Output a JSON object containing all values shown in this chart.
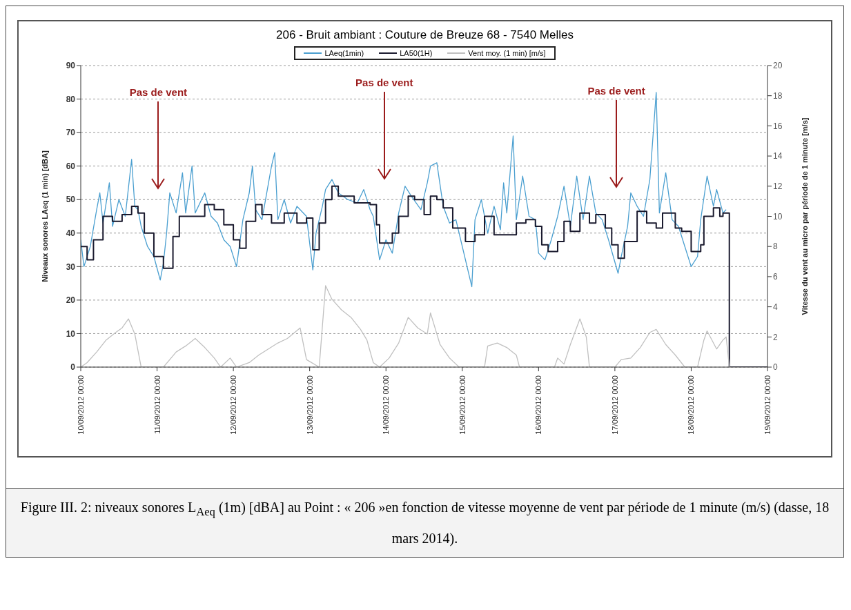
{
  "chart_data": {
    "type": "line",
    "title": "206 - Bruit ambiant : Couture de Breuze 68 - 7540 Melles",
    "ylabel": "Niveaux sonores  LAeq (1 min)  [dBA]",
    "y2label": "Vitesse du vent  au micro  par période de  1 minute  [m/s]",
    "xlim": [
      "2012-09-10T00:00",
      "2012-09-19T00:00"
    ],
    "xticks": [
      {
        "value": "2012-09-10T00:00",
        "label": "10/09/2012 00:00"
      },
      {
        "value": "2012-09-11T00:00",
        "label": "11/09/2012 00:00"
      },
      {
        "value": "2012-09-12T00:00",
        "label": "12/09/2012 00:00"
      },
      {
        "value": "2012-09-13T00:00",
        "label": "13/09/2012 00:00"
      },
      {
        "value": "2012-09-14T00:00",
        "label": "14/09/2012 00:00"
      },
      {
        "value": "2012-09-15T00:00",
        "label": "15/09/2012 00:00"
      },
      {
        "value": "2012-09-16T00:00",
        "label": "16/09/2012 00:00"
      },
      {
        "value": "2012-09-17T00:00",
        "label": "17/09/2012 00:00"
      },
      {
        "value": "2012-09-18T00:00",
        "label": "18/09/2012 00:00"
      },
      {
        "value": "2012-09-19T00:00",
        "label": "19/09/2012 00:00"
      }
    ],
    "ylim": [
      0,
      90
    ],
    "yticks": [
      0,
      10,
      20,
      30,
      40,
      50,
      60,
      70,
      80,
      90
    ],
    "y2lim": [
      0,
      20
    ],
    "y2ticks": [
      0,
      2,
      4,
      6,
      8,
      10,
      12,
      14,
      16,
      18,
      20
    ],
    "grid": "y",
    "legend": "top",
    "marker": "none",
    "line_style": "solid",
    "series": [
      {
        "name": "LAeq(1min)",
        "color": "#4a9fd0",
        "x": [
          "2012-09-10T00:00",
          "2012-09-10T01:00",
          "2012-09-10T03:00",
          "2012-09-10T05:00",
          "2012-09-10T06:00",
          "2012-09-10T07:00",
          "2012-09-10T09:00",
          "2012-09-10T10:00",
          "2012-09-10T12:00",
          "2012-09-10T14:00",
          "2012-09-10T16:00",
          "2012-09-10T17:00",
          "2012-09-10T18:00",
          "2012-09-10T19:00",
          "2012-09-10T21:00",
          "2012-09-10T23:00",
          "2012-09-11T01:00",
          "2012-09-11T02:00",
          "2012-09-11T03:00",
          "2012-09-11T04:00",
          "2012-09-11T06:00",
          "2012-09-11T08:00",
          "2012-09-11T09:00",
          "2012-09-11T11:00",
          "2012-09-11T12:00",
          "2012-09-11T15:00",
          "2012-09-11T17:00",
          "2012-09-11T19:00",
          "2012-09-11T21:00",
          "2012-09-11T23:00",
          "2012-09-12T01:00",
          "2012-09-12T03:00",
          "2012-09-12T05:00",
          "2012-09-12T06:00",
          "2012-09-12T07:00",
          "2012-09-12T09:00",
          "2012-09-12T12:00",
          "2012-09-12T13:00",
          "2012-09-12T14:00",
          "2012-09-12T16:00",
          "2012-09-12T18:00",
          "2012-09-12T20:00",
          "2012-09-12T23:00",
          "2012-09-13T01:00",
          "2012-09-13T02:00",
          "2012-09-13T04:00",
          "2012-09-13T05:00",
          "2012-09-13T07:00",
          "2012-09-13T09:00",
          "2012-09-13T12:00",
          "2012-09-13T15:00",
          "2012-09-13T17:00",
          "2012-09-13T19:00",
          "2012-09-13T20:00",
          "2012-09-13T22:00",
          "2012-09-14T00:00",
          "2012-09-14T02:00",
          "2012-09-14T04:00",
          "2012-09-14T06:00",
          "2012-09-14T08:00",
          "2012-09-14T11:00",
          "2012-09-14T13:00",
          "2012-09-14T14:00",
          "2012-09-14T16:00",
          "2012-09-14T18:00",
          "2012-09-14T20:00",
          "2012-09-14T22:00",
          "2012-09-15T00:00",
          "2012-09-15T03:00",
          "2012-09-15T04:00",
          "2012-09-15T06:00",
          "2012-09-15T08:00",
          "2012-09-15T10:00",
          "2012-09-15T12:00",
          "2012-09-15T13:00",
          "2012-09-15T14:00",
          "2012-09-15T16:00",
          "2012-09-15T17:00",
          "2012-09-15T19:00",
          "2012-09-15T21:00",
          "2012-09-15T23:00",
          "2012-09-16T00:00",
          "2012-09-16T02:00",
          "2012-09-16T04:00",
          "2012-09-16T06:00",
          "2012-09-16T08:00",
          "2012-09-16T10:00",
          "2012-09-16T12:00",
          "2012-09-16T14:00",
          "2012-09-16T16:00",
          "2012-09-16T18:00",
          "2012-09-16T20:00",
          "2012-09-16T22:00",
          "2012-09-17T01:00",
          "2012-09-17T02:00",
          "2012-09-17T04:00",
          "2012-09-17T05:00",
          "2012-09-17T07:00",
          "2012-09-17T09:00",
          "2012-09-17T11:00",
          "2012-09-17T13:00",
          "2012-09-17T14:00",
          "2012-09-17T16:00",
          "2012-09-17T18:00",
          "2012-09-17T20:00",
          "2012-09-17T22:00",
          "2012-09-18T00:00",
          "2012-09-18T02:00",
          "2012-09-18T03:00",
          "2012-09-18T05:00",
          "2012-09-18T07:00",
          "2012-09-18T08:00",
          "2012-09-18T10:00",
          "2012-09-18T11:00"
        ],
        "values": [
          38,
          30,
          36,
          47,
          52,
          43,
          55,
          42,
          50,
          45,
          62,
          48,
          47,
          42,
          36,
          33,
          26,
          31,
          40,
          52,
          46,
          58,
          46,
          60,
          46,
          52,
          45,
          43,
          38,
          36,
          30,
          44,
          52,
          60,
          47,
          44,
          60,
          64,
          44,
          50,
          43,
          48,
          45,
          29,
          40,
          48,
          53,
          56,
          52,
          50,
          49,
          53,
          47,
          45,
          32,
          38,
          34,
          46,
          54,
          51,
          47,
          55,
          60,
          61,
          48,
          43,
          44,
          36,
          24,
          44,
          50,
          40,
          48,
          41,
          55,
          46,
          69,
          44,
          57,
          45,
          44,
          34,
          32,
          38,
          45,
          54,
          42,
          57,
          44,
          57,
          46,
          44,
          38,
          28,
          33,
          42,
          52,
          48,
          45,
          56,
          82,
          46,
          58,
          44,
          42,
          36,
          30,
          33,
          44,
          57,
          48,
          53,
          46,
          47
        ]
      },
      {
        "name": "LA50(1H)",
        "color": "#1a1a2e",
        "type": "step",
        "x": [
          "2012-09-10T00:00",
          "2012-09-10T02:00",
          "2012-09-10T04:00",
          "2012-09-10T07:00",
          "2012-09-10T10:00",
          "2012-09-10T13:00",
          "2012-09-10T16:00",
          "2012-09-10T18:00",
          "2012-09-10T20:00",
          "2012-09-10T23:00",
          "2012-09-11T02:00",
          "2012-09-11T05:00",
          "2012-09-11T07:00",
          "2012-09-11T12:00",
          "2012-09-11T15:00",
          "2012-09-11T18:00",
          "2012-09-11T21:00",
          "2012-09-12T00:00",
          "2012-09-12T02:00",
          "2012-09-12T04:00",
          "2012-09-12T07:00",
          "2012-09-12T09:00",
          "2012-09-12T12:00",
          "2012-09-12T16:00",
          "2012-09-12T20:00",
          "2012-09-12T23:00",
          "2012-09-13T01:00",
          "2012-09-13T03:00",
          "2012-09-13T05:00",
          "2012-09-13T07:00",
          "2012-09-13T09:00",
          "2012-09-13T14:00",
          "2012-09-13T19:00",
          "2012-09-13T21:00",
          "2012-09-13T22:00",
          "2012-09-14T02:00",
          "2012-09-14T04:00",
          "2012-09-14T07:00",
          "2012-09-14T09:00",
          "2012-09-14T12:00",
          "2012-09-14T14:00",
          "2012-09-14T16:00",
          "2012-09-14T18:00",
          "2012-09-14T21:00",
          "2012-09-15T01:00",
          "2012-09-15T04:00",
          "2012-09-15T07:00",
          "2012-09-15T10:00",
          "2012-09-15T15:00",
          "2012-09-15T17:00",
          "2012-09-15T20:00",
          "2012-09-15T23:00",
          "2012-09-16T01:00",
          "2012-09-16T03:00",
          "2012-09-16T06:00",
          "2012-09-16T08:00",
          "2012-09-16T10:00",
          "2012-09-16T13:00",
          "2012-09-16T16:00",
          "2012-09-16T18:00",
          "2012-09-16T21:00",
          "2012-09-16T23:00",
          "2012-09-17T01:00",
          "2012-09-17T03:00",
          "2012-09-17T07:00",
          "2012-09-17T10:00",
          "2012-09-17T13:00",
          "2012-09-17T15:00",
          "2012-09-17T19:00",
          "2012-09-17T21:00",
          "2012-09-18T00:00",
          "2012-09-18T03:00",
          "2012-09-18T04:00",
          "2012-09-18T07:00",
          "2012-09-18T09:00",
          "2012-09-18T10:00",
          "2012-09-18T12:00",
          "2012-09-19T00:00"
        ],
        "values": [
          36,
          32,
          38,
          45,
          43.5,
          45.5,
          48,
          46,
          40,
          33,
          29.5,
          39,
          45,
          45,
          48.5,
          47,
          42.5,
          38,
          35.5,
          43.5,
          48.5,
          45.5,
          43,
          46,
          43,
          44.5,
          35,
          43,
          50,
          54,
          51,
          49,
          48.5,
          42.5,
          37,
          40,
          45,
          51,
          50,
          45.5,
          51,
          50,
          47.5,
          41.5,
          37.5,
          39.5,
          45,
          39.5,
          39.5,
          43,
          44,
          42,
          36.5,
          34.5,
          37.5,
          43.5,
          40.5,
          46,
          43,
          45.5,
          41.5,
          36.5,
          32.5,
          37.5,
          46.5,
          43,
          41.5,
          46,
          41.5,
          40.5,
          34.5,
          36.5,
          45,
          47.5,
          45,
          46,
          0,
          0
        ]
      },
      {
        "name": "Vent moy. (1 min)  [m/s]",
        "color": "#c0c0c0",
        "axis": "y2",
        "x": [
          "2012-09-10T00:00",
          "2012-09-10T02:00",
          "2012-09-10T05:00",
          "2012-09-10T08:00",
          "2012-09-10T11:00",
          "2012-09-10T13:00",
          "2012-09-10T15:00",
          "2012-09-10T17:00",
          "2012-09-10T19:00",
          "2012-09-11T02:00",
          "2012-09-11T04:00",
          "2012-09-11T06:00",
          "2012-09-11T09:00",
          "2012-09-11T12:00",
          "2012-09-11T15:00",
          "2012-09-11T18:00",
          "2012-09-11T20:00",
          "2012-09-11T23:00",
          "2012-09-12T01:00",
          "2012-09-12T05:00",
          "2012-09-12T08:00",
          "2012-09-12T11:00",
          "2012-09-12T14:00",
          "2012-09-12T17:00",
          "2012-09-12T21:00",
          "2012-09-12T23:00",
          "2012-09-13T03:00",
          "2012-09-13T05:00",
          "2012-09-13T07:00",
          "2012-09-13T10:00",
          "2012-09-13T13:00",
          "2012-09-13T16:00",
          "2012-09-13T18:00",
          "2012-09-13T20:00",
          "2012-09-13T22:00",
          "2012-09-14T01:00",
          "2012-09-14T04:00",
          "2012-09-14T07:00",
          "2012-09-14T10:00",
          "2012-09-14T13:00",
          "2012-09-14T14:00",
          "2012-09-14T17:00",
          "2012-09-14T20:00",
          "2012-09-14T23:00",
          "2012-09-15T07:00",
          "2012-09-15T08:00",
          "2012-09-15T11:00",
          "2012-09-15T14:00",
          "2012-09-15T17:00",
          "2012-09-15T18:00",
          "2012-09-16T05:00",
          "2012-09-16T06:00",
          "2012-09-16T08:00",
          "2012-09-16T10:00",
          "2012-09-16T13:00",
          "2012-09-16T15:00",
          "2012-09-16T16:00",
          "2012-09-17T00:00",
          "2012-09-17T02:00",
          "2012-09-17T05:00",
          "2012-09-17T08:00",
          "2012-09-17T11:00",
          "2012-09-17T13:00",
          "2012-09-17T16:00",
          "2012-09-17T19:00",
          "2012-09-17T22:00",
          "2012-09-18T02:00",
          "2012-09-18T04:00",
          "2012-09-18T05:00",
          "2012-09-18T08:00",
          "2012-09-18T10:00",
          "2012-09-18T11:00",
          "2012-09-18T12:00"
        ],
        "values": [
          0,
          0.3,
          1,
          1.8,
          2.3,
          2.6,
          3.2,
          2.2,
          0,
          0,
          0.5,
          1,
          1.4,
          1.9,
          1.3,
          0.6,
          0,
          0.6,
          0,
          0.3,
          0.8,
          1.2,
          1.6,
          1.9,
          2.6,
          0.5,
          0,
          5.4,
          4.5,
          3.8,
          3.3,
          2.5,
          1.8,
          0.3,
          0,
          0.6,
          1.6,
          3.3,
          2.6,
          2.2,
          3.6,
          1.5,
          0.6,
          0,
          0,
          1.4,
          1.6,
          1.3,
          0.8,
          0,
          0,
          0.6,
          0.2,
          1.5,
          3.2,
          2,
          0,
          0,
          0.5,
          0.6,
          1.3,
          2.3,
          2.5,
          1.5,
          0.8,
          0,
          0,
          1.8,
          2.4,
          1.2,
          1.8,
          2,
          0
        ]
      }
    ],
    "annotations": [
      "Pas de vent",
      "Pas de vent",
      "Pas de vent",
      "Figure III. 2: niveaux sonores L$_{Aeq}$ (1m) [dBA]  au Point : « 206 »en fonction de vitesse moyenne de vent par période de 1 minute (m/s) (dasse, 18 mars 2014)."
    ]
  }
}
